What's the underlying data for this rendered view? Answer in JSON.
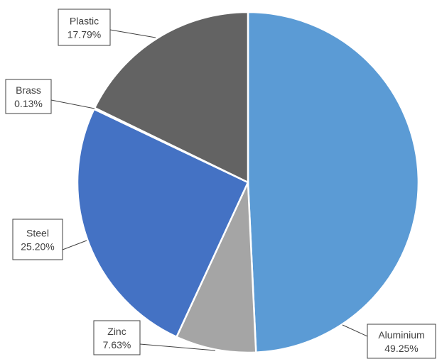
{
  "chart_data": {
    "type": "pie",
    "slices": [
      {
        "label": "Aluminium",
        "value": 49.25,
        "value_label": "49.25%",
        "color": "#5B9BD5"
      },
      {
        "label": "Zinc",
        "value": 7.63,
        "value_label": "7.63%",
        "color": "#A5A5A5"
      },
      {
        "label": "Steel",
        "value": 25.2,
        "value_label": "25.20%",
        "color": "#4472C4"
      },
      {
        "label": "Brass",
        "value": 0.13,
        "value_label": "0.13%",
        "color": "#264478"
      },
      {
        "label": "Plastic",
        "value": 17.79,
        "value_label": "17.79%",
        "color": "#636363"
      }
    ],
    "start_angle": "12 o'clock",
    "direction": "clockwise",
    "legend": "none",
    "data_labels": "callouts with leader lines"
  }
}
